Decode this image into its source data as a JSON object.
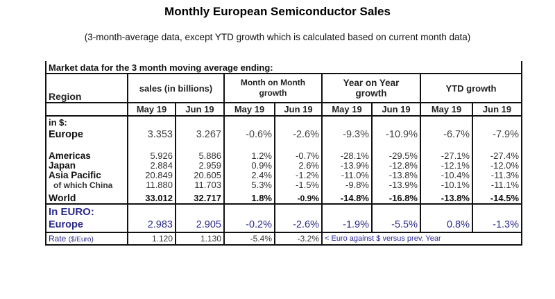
{
  "title": "Monthly European Semiconductor Sales",
  "subtitle": "(3-month-average data, except YTD growth which is calculated based on current month data)",
  "table": {
    "caption": "Market data for the 3 month moving average ending:",
    "header": {
      "region": "Region",
      "sales": "sales (in billions)",
      "mom_line1": "Month on Month",
      "mom_line2": "growth",
      "yoy_line1": "Year on Year",
      "yoy_line2": "growth",
      "ytd": "YTD growth"
    },
    "months": [
      "May 19",
      "Jun 19",
      "May 19",
      "Jun 19",
      "May 19",
      "Jun 19",
      "May 19",
      "Jun 19"
    ],
    "usd_section_label": "in $:",
    "europe_usd": {
      "label": "Europe",
      "values": [
        "3.353",
        "3.267",
        "-0.6%",
        "-2.6%",
        "-9.3%",
        "-10.9%",
        "-6.7%",
        "-7.9%"
      ]
    },
    "rows": [
      {
        "label": "Americas",
        "values": [
          "5.926",
          "5.886",
          "1.2%",
          "-0.7%",
          "-28.1%",
          "-29.5%",
          "-27.1%",
          "-27.4%"
        ]
      },
      {
        "label": "Japan",
        "values": [
          "2.884",
          "2.959",
          "0.9%",
          "2.6%",
          "-13.9%",
          "-12.8%",
          "-12.1%",
          "-12.0%"
        ]
      },
      {
        "label": "Asia Pacific",
        "values": [
          "20.849",
          "20.605",
          "2.4%",
          "-1.2%",
          "-11.0%",
          "-13.8%",
          "-10.4%",
          "-11.3%"
        ]
      },
      {
        "label": "of which China",
        "values": [
          "11.880",
          "11.703",
          "5.3%",
          "-1.5%",
          "-9.8%",
          "-13.9%",
          "-10.1%",
          "-11.1%"
        ]
      }
    ],
    "world": {
      "label": "World",
      "values": [
        "33.012",
        "32.717",
        "1.8%",
        "-0.9%",
        "-14.8%",
        "-16.8%",
        "-13.8%",
        "-14.5%"
      ]
    },
    "euro_section_label": "In EURO:",
    "europe_eur": {
      "label": "Europe",
      "values": [
        "2.983",
        "2.905",
        "-0.2%",
        "-2.6%",
        "-1.9%",
        "-5.5%",
        "0.8%",
        "-1.3%"
      ]
    },
    "rate": {
      "label": "Rate",
      "unit": "($/Euro)",
      "values": [
        "1.120",
        "1.130",
        "-5.4%",
        "-3.2%"
      ],
      "note": "< Euro against $ versus prev. Year"
    }
  },
  "colors": {
    "euro_text": "#2a2a8a",
    "border": "#111111"
  }
}
